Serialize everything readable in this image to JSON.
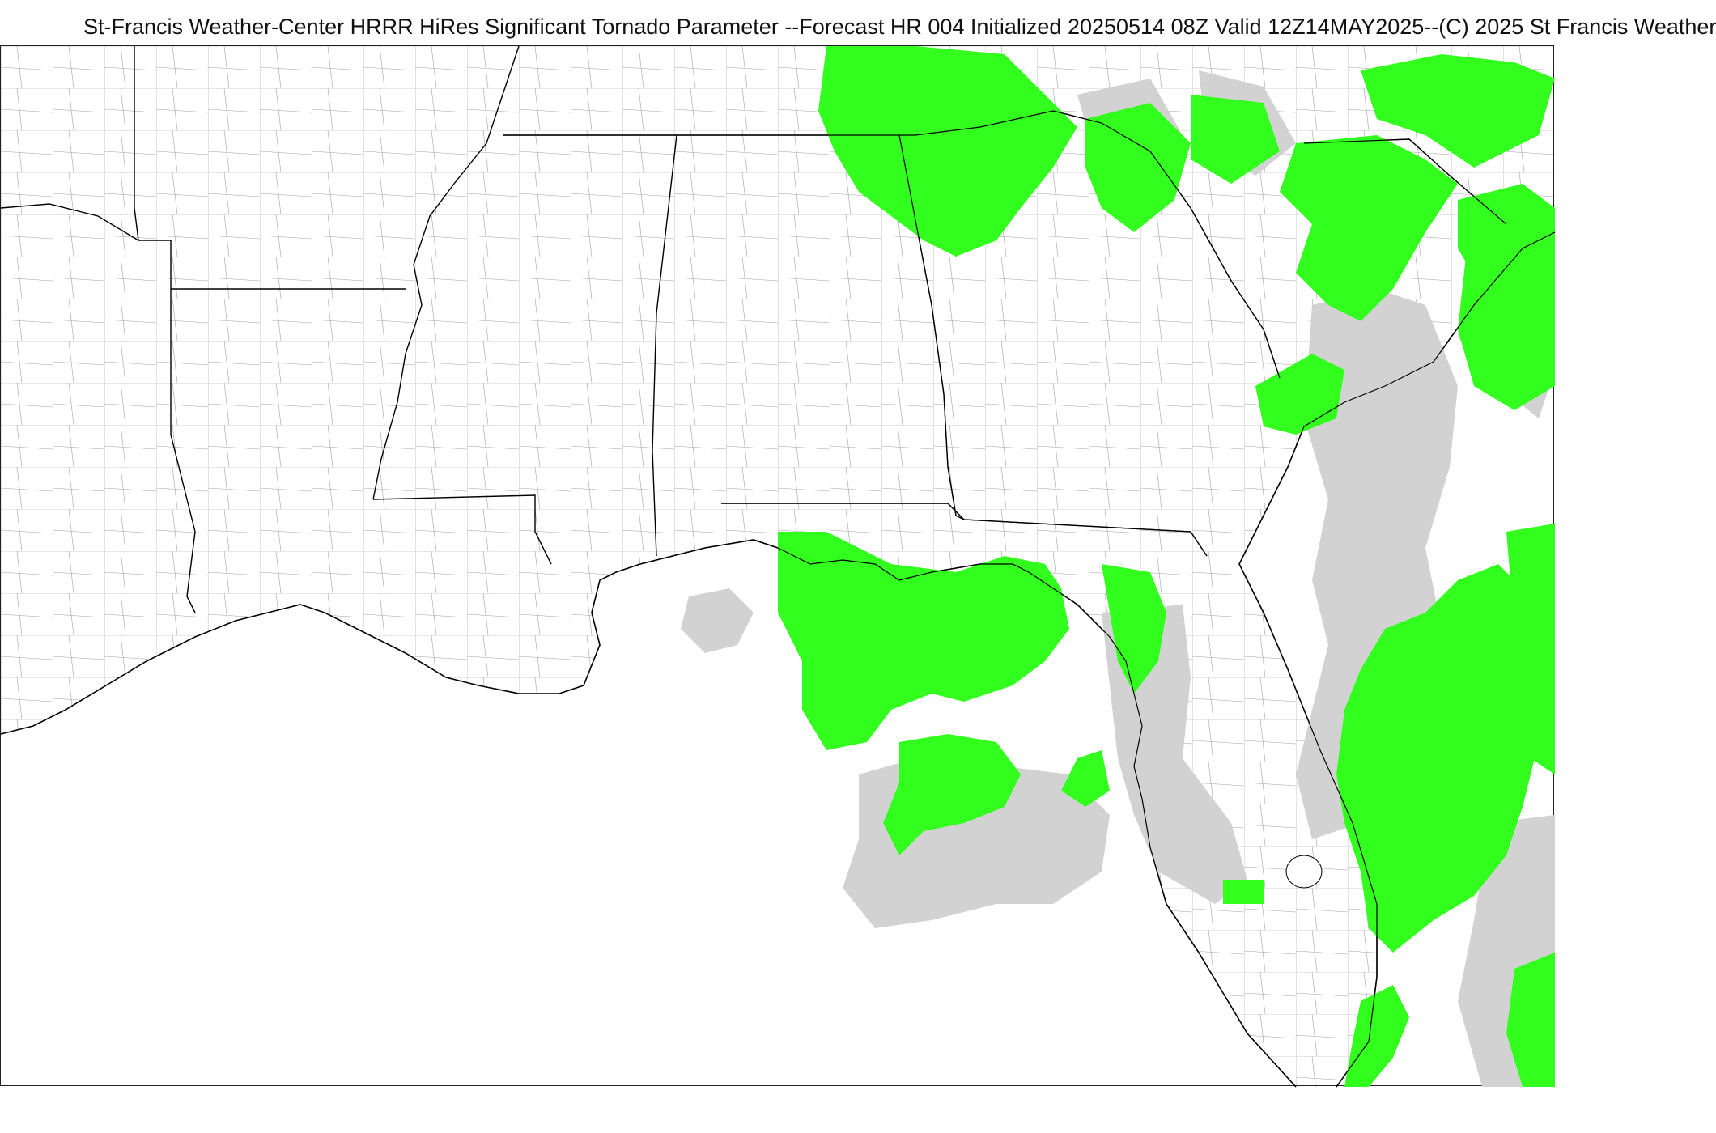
{
  "title": "St-Francis Weather-Center HRRR HiRes Significant Tornado Parameter --Forecast HR 004 Initialized 20250514 08Z Valid 12Z14MAY2025--(C) 2025 St Francis Weather",
  "map": {
    "region": "Southeastern United States and Gulf of Mexico",
    "colors": {
      "stp_shade_light": "#33ff1f",
      "stp_shade_gray": "#d2d2d2",
      "state_borders": "#000000",
      "county_borders": "#444444",
      "background": "#ffffff"
    }
  }
}
